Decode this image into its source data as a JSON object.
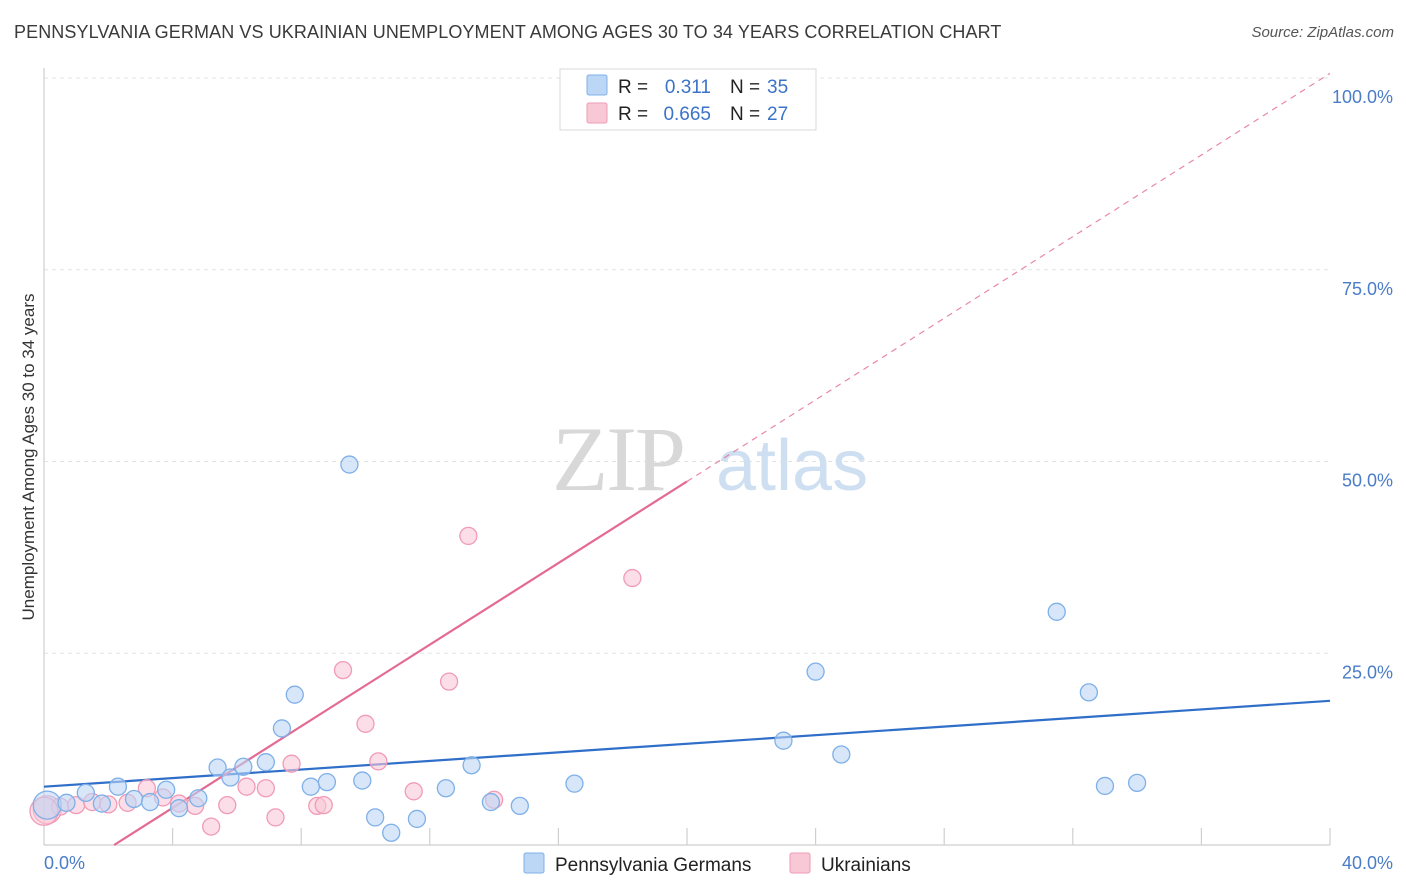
{
  "title": "PENNSYLVANIA GERMAN VS UKRAINIAN UNEMPLOYMENT AMONG AGES 30 TO 34 YEARS CORRELATION CHART",
  "source": "Source: ZipAtlas.com",
  "watermark": {
    "zip": "ZIP",
    "atlas": "atlas"
  },
  "chart_data": {
    "type": "scatter",
    "title": "PENNSYLVANIA GERMAN VS UKRAINIAN UNEMPLOYMENT AMONG AGES 30 TO 34 YEARS CORRELATION CHART",
    "xlabel": "",
    "ylabel": "Unemployment Among Ages 30 to 34 years",
    "xlim": [
      0,
      40
    ],
    "ylim": [
      0,
      100
    ],
    "x_tick_labels": [
      "0.0%",
      "40.0%"
    ],
    "y_ticks": [
      25,
      50,
      75,
      100
    ],
    "y_tick_labels": [
      "25.0%",
      "50.0%",
      "75.0%",
      "100.0%"
    ],
    "legend": [
      {
        "r_label": "R =",
        "r_value": "0.311",
        "n_label": "N =",
        "n_value": "35"
      },
      {
        "r_label": "R =",
        "r_value": "0.665",
        "n_label": "N =",
        "n_value": "27"
      }
    ],
    "series": [
      {
        "name": "Pennsylvania Germans",
        "color": "#7fb0e8",
        "fill": "#bcd6f5",
        "line_color": "#2f6fc9",
        "trend": {
          "x": [
            0,
            40
          ],
          "y": [
            7.6,
            18.8
          ]
        },
        "points": [
          {
            "x": 0.1,
            "y": 5.2
          },
          {
            "x": 0.7,
            "y": 5.5
          },
          {
            "x": 1.3,
            "y": 6.8
          },
          {
            "x": 1.8,
            "y": 5.4
          },
          {
            "x": 2.3,
            "y": 7.6
          },
          {
            "x": 2.8,
            "y": 6.0
          },
          {
            "x": 3.3,
            "y": 5.6
          },
          {
            "x": 3.8,
            "y": 7.2
          },
          {
            "x": 4.2,
            "y": 4.8
          },
          {
            "x": 4.8,
            "y": 6.1
          },
          {
            "x": 5.4,
            "y": 10.1
          },
          {
            "x": 5.8,
            "y": 8.8
          },
          {
            "x": 6.2,
            "y": 10.2
          },
          {
            "x": 6.9,
            "y": 10.8
          },
          {
            "x": 7.4,
            "y": 15.2
          },
          {
            "x": 7.8,
            "y": 19.6
          },
          {
            "x": 8.3,
            "y": 7.6
          },
          {
            "x": 8.8,
            "y": 8.2
          },
          {
            "x": 9.5,
            "y": 49.6
          },
          {
            "x": 9.9,
            "y": 8.4
          },
          {
            "x": 10.3,
            "y": 3.6
          },
          {
            "x": 10.8,
            "y": 1.6
          },
          {
            "x": 11.6,
            "y": 3.4
          },
          {
            "x": 12.5,
            "y": 7.4
          },
          {
            "x": 13.3,
            "y": 10.4
          },
          {
            "x": 13.9,
            "y": 5.6
          },
          {
            "x": 14.8,
            "y": 5.1
          },
          {
            "x": 16.5,
            "y": 8.0
          },
          {
            "x": 23.0,
            "y": 13.6
          },
          {
            "x": 24.0,
            "y": 22.6
          },
          {
            "x": 24.8,
            "y": 11.8
          },
          {
            "x": 31.5,
            "y": 30.4
          },
          {
            "x": 32.5,
            "y": 19.9
          },
          {
            "x": 33.0,
            "y": 7.7
          },
          {
            "x": 34.0,
            "y": 8.1
          }
        ]
      },
      {
        "name": "Ukrainians",
        "color": "#f19bb6",
        "fill": "#f8c8d7",
        "line_color": "#e46a93",
        "trend": {
          "x": [
            0,
            40
          ],
          "y": [
            -5.8,
            100.6
          ]
        },
        "points": [
          {
            "x": 0.1,
            "y": 4.6
          },
          {
            "x": 0.5,
            "y": 5.0
          },
          {
            "x": 1.0,
            "y": 5.2
          },
          {
            "x": 1.5,
            "y": 5.6
          },
          {
            "x": 2.0,
            "y": 5.3
          },
          {
            "x": 2.6,
            "y": 5.5
          },
          {
            "x": 3.2,
            "y": 7.4
          },
          {
            "x": 3.7,
            "y": 6.2
          },
          {
            "x": 4.2,
            "y": 5.4
          },
          {
            "x": 4.7,
            "y": 5.1
          },
          {
            "x": 5.2,
            "y": 2.4
          },
          {
            "x": 5.7,
            "y": 5.2
          },
          {
            "x": 6.3,
            "y": 7.6
          },
          {
            "x": 6.9,
            "y": 7.4
          },
          {
            "x": 7.2,
            "y": 3.6
          },
          {
            "x": 7.7,
            "y": 10.6
          },
          {
            "x": 8.5,
            "y": 5.1
          },
          {
            "x": 8.7,
            "y": 5.2
          },
          {
            "x": 9.3,
            "y": 22.8
          },
          {
            "x": 10.0,
            "y": 15.8
          },
          {
            "x": 10.4,
            "y": 10.9
          },
          {
            "x": 11.5,
            "y": 7.0
          },
          {
            "x": 12.6,
            "y": 21.3
          },
          {
            "x": 13.2,
            "y": 40.3
          },
          {
            "x": 14.0,
            "y": 5.9
          },
          {
            "x": 18.3,
            "y": 34.8
          },
          {
            "x": 0.0,
            "y": 4.4
          }
        ]
      }
    ]
  }
}
